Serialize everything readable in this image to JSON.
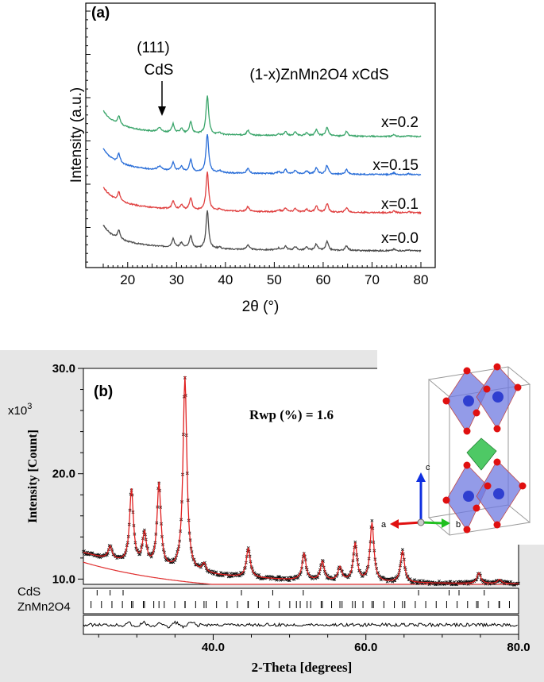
{
  "chart_data": [
    {
      "panel": "(a)",
      "type": "line",
      "xlabel": "2θ (°)",
      "ylabel": "Intensity (a.u.)",
      "xlim": [
        15,
        80
      ],
      "xticks": [
        20,
        30,
        40,
        50,
        60,
        70,
        80
      ],
      "title": "(1-x)ZnMn2O4 xCdS",
      "annotation": {
        "text_top": "(111)",
        "text_bottom": "CdS",
        "x": 26.5
      },
      "series": [
        {
          "name": "x=0.0",
          "color": "#4d4d4d",
          "offset": 0
        },
        {
          "name": "x=0.1",
          "color": "#e04040",
          "offset": 1
        },
        {
          "name": "x=0.15",
          "color": "#2a6ed8",
          "offset": 2
        },
        {
          "name": "x=0.2",
          "color": "#3aa56a",
          "offset": 3
        }
      ],
      "peaks": [
        {
          "x": 18.2,
          "h": 0.55
        },
        {
          "x": 29.3,
          "h": 0.55
        },
        {
          "x": 31.0,
          "h": 0.3
        },
        {
          "x": 32.9,
          "h": 0.75
        },
        {
          "x": 36.3,
          "h": 2.4
        },
        {
          "x": 38.8,
          "h": 0.12
        },
        {
          "x": 44.6,
          "h": 0.3
        },
        {
          "x": 50.9,
          "h": 0.12
        },
        {
          "x": 52.3,
          "h": 0.25
        },
        {
          "x": 54.3,
          "h": 0.22
        },
        {
          "x": 56.6,
          "h": 0.18
        },
        {
          "x": 58.6,
          "h": 0.4
        },
        {
          "x": 60.8,
          "h": 0.55
        },
        {
          "x": 64.8,
          "h": 0.3
        },
        {
          "x": 74.5,
          "h": 0.1
        },
        {
          "x": 77.5,
          "h": 0.06
        }
      ]
    },
    {
      "panel": "(b)",
      "type": "line",
      "xlabel": "2-Theta [degrees]",
      "ylabel": "Intensity [Count]",
      "ymultiplier": "x10",
      "ymultiplier_exp": "3",
      "xlim": [
        23,
        80
      ],
      "ylim": [
        9.5,
        30
      ],
      "xticks": [
        40.0,
        60.0,
        80.0
      ],
      "yticks": [
        10.0,
        20.0,
        30.0
      ],
      "annotation": "Rwp (%) = 1.6",
      "phases": [
        {
          "name": "CdS",
          "color": "#4a4aff"
        },
        {
          "name": "ZnMn2O4",
          "color": "#2e8b2e"
        }
      ],
      "cds_ticks": [
        24.8,
        26.5,
        28.2,
        43.7,
        47.8,
        51.8,
        66.9,
        70.9,
        72.2,
        75.5
      ],
      "znmn_ticks": [
        18.2,
        29.3,
        31.0,
        32.9,
        36.3,
        38.8,
        44.6,
        50.9,
        52.3,
        54.3,
        56.6,
        58.6,
        60.8,
        64.8,
        74.5,
        77.5
      ],
      "peaks": [
        {
          "x": 26.5,
          "h": 1.2
        },
        {
          "x": 29.3,
          "h": 7.0
        },
        {
          "x": 31.0,
          "h": 3.0
        },
        {
          "x": 32.9,
          "h": 8.0
        },
        {
          "x": 36.3,
          "h": 18.5
        },
        {
          "x": 38.8,
          "h": 0.8
        },
        {
          "x": 44.6,
          "h": 2.8
        },
        {
          "x": 51.9,
          "h": 2.5
        },
        {
          "x": 54.3,
          "h": 1.8
        },
        {
          "x": 56.6,
          "h": 1.3
        },
        {
          "x": 58.6,
          "h": 3.6
        },
        {
          "x": 60.8,
          "h": 5.6
        },
        {
          "x": 64.8,
          "h": 3.0
        },
        {
          "x": 74.8,
          "h": 1.0
        },
        {
          "x": 77.5,
          "h": 0.4
        }
      ],
      "inset": {
        "axes": [
          "a",
          "b",
          "c"
        ]
      }
    }
  ]
}
